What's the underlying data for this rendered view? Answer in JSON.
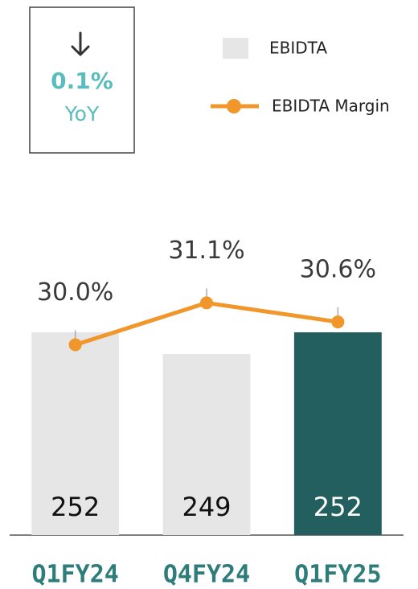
{
  "chart_data": {
    "type": "bar",
    "annotation": {
      "value": "0.1%",
      "label": "YoY"
    },
    "categories": [
      "Q1FY24",
      "Q4FY24",
      "Q1FY25"
    ],
    "series": [
      {
        "name": "EBIDTA",
        "type": "bar",
        "color": "#e6e6e6",
        "colors": [
          "#e6e6e6",
          "#e6e6e6",
          "#235f5f"
        ],
        "label_colors": [
          "#111111",
          "#111111",
          "#ffffff"
        ],
        "values": [
          252,
          249,
          252
        ]
      },
      {
        "name": "EBIDTA Margin",
        "type": "line",
        "axis": "y2",
        "color": "#f0962a",
        "values": [
          30.0,
          31.1,
          30.6
        ],
        "value_labels": [
          "30.0%",
          "31.1%",
          "30.6%"
        ]
      }
    ],
    "ylim": [
      224,
      265
    ],
    "y2lim": [
      25,
      32.8
    ],
    "legend": "top-right"
  }
}
